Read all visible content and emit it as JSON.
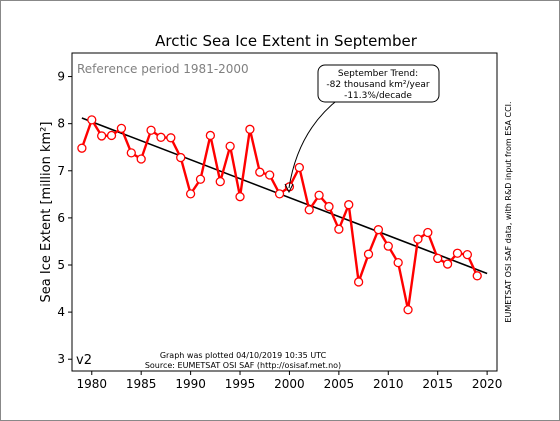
{
  "chart_data": {
    "type": "line",
    "title": "Arctic Sea Ice Extent in September",
    "xlabel": "",
    "ylabel": "Sea Ice Extent [million km²]",
    "xlim": [
      1978,
      2021
    ],
    "ylim": [
      2.75,
      9.5
    ],
    "xticks": [
      "1980",
      "1985",
      "1990",
      "1995",
      "2000",
      "2005",
      "2010",
      "2015",
      "2020"
    ],
    "yticks": [
      "3",
      "4",
      "5",
      "6",
      "7",
      "8",
      "9"
    ],
    "grid": false,
    "series": [
      {
        "name": "",
        "color": "#ff0000",
        "marker": "open-circle",
        "x": [
          1979,
          1980,
          1981,
          1982,
          1983,
          1984,
          1985,
          1986,
          1987,
          1988,
          1989,
          1990,
          1991,
          1992,
          1993,
          1994,
          1995,
          1996,
          1997,
          1998,
          1999,
          2000,
          2001,
          2002,
          2003,
          2004,
          2005,
          2006,
          2007,
          2008,
          2009,
          2010,
          2011,
          2012,
          2013,
          2014,
          2015,
          2016,
          2017,
          2018,
          2019
        ],
        "values": [
          7.48,
          8.08,
          7.74,
          7.75,
          7.9,
          7.38,
          7.25,
          7.86,
          7.71,
          7.7,
          7.28,
          6.51,
          6.82,
          7.75,
          6.77,
          7.52,
          6.45,
          7.88,
          6.97,
          6.91,
          6.51,
          6.66,
          7.07,
          6.17,
          6.48,
          6.24,
          5.76,
          6.28,
          4.64,
          5.23,
          5.75,
          5.4,
          5.05,
          4.05,
          5.55,
          5.69,
          5.14,
          5.02,
          5.25,
          5.22,
          4.77
        ]
      }
    ],
    "trend": {
      "x": [
        1979,
        2020
      ],
      "values": [
        8.12,
        4.82
      ],
      "color": "#000000"
    },
    "reference_period_label": "Reference period 1981-2000",
    "version_label": "v2",
    "annotation": {
      "lines": [
        "September Trend:",
        "-82 thousand km²/year",
        "-11.3%/decade"
      ],
      "point_x": 1999.8,
      "point_y": 6.5
    },
    "footer": [
      "Graph was plotted 04/10/2019 10:35 UTC",
      "Source: EUMETSAT OSI SAF (http://osisaf.met.no)"
    ],
    "side_credit": "EUMETSAT OSI SAF data, with R&D input from ESA CCI."
  }
}
